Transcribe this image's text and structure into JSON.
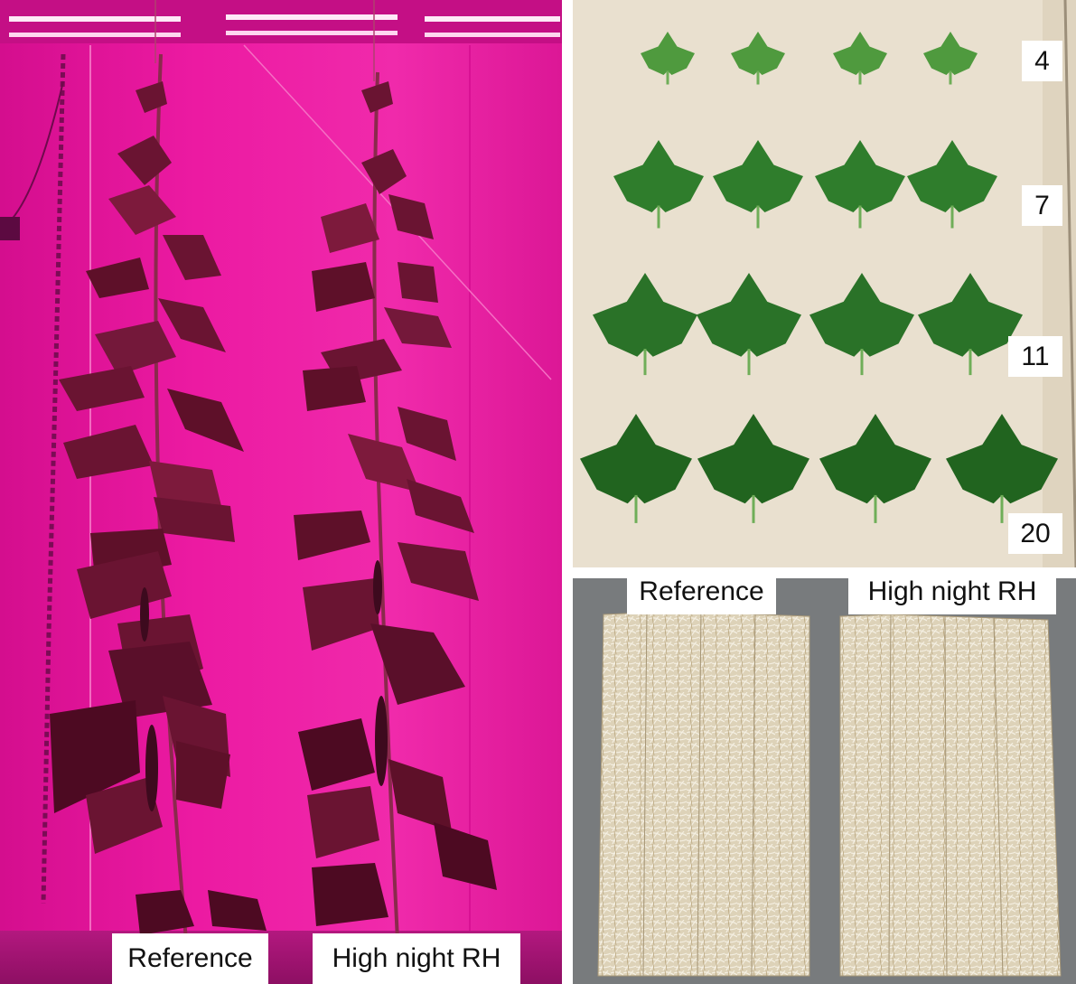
{
  "figure": {
    "plants_photo": {
      "labels": {
        "reference": "Reference",
        "treatment": "High night RH"
      }
    },
    "leaves_photo": {
      "leaf_numbers": [
        "4",
        "7",
        "11",
        "20"
      ]
    },
    "roots_photo": {
      "labels": {
        "reference": "Reference",
        "treatment": "High night RH"
      }
    },
    "colors": {
      "grow_light_magenta": "#e6139a",
      "leaf_green": "#2f7a2c",
      "background_cream": "#e9e0cf",
      "root_slab_beige": "#d9ccb0"
    }
  }
}
